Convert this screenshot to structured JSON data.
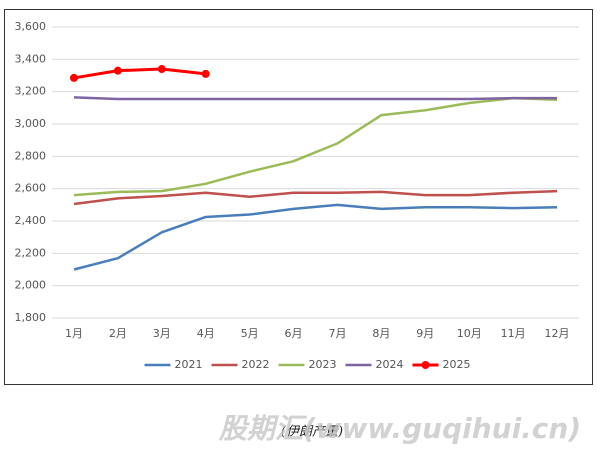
{
  "chart_data": {
    "type": "line",
    "categories": [
      "1月",
      "2月",
      "3月",
      "4月",
      "5月",
      "6月",
      "7月",
      "8月",
      "9月",
      "10月",
      "11月",
      "12月"
    ],
    "series": [
      {
        "name": "2021",
        "color": "#4a7ebb",
        "values": [
          2100,
          2170,
          2330,
          2425,
          2440,
          2475,
          2500,
          2475,
          2485,
          2485,
          2480,
          2485
        ]
      },
      {
        "name": "2022",
        "color": "#c0504d",
        "values": [
          2505,
          2540,
          2555,
          2575,
          2550,
          2575,
          2575,
          2580,
          2560,
          2560,
          2575,
          2585
        ]
      },
      {
        "name": "2023",
        "color": "#9bbb59",
        "values": [
          2560,
          2580,
          2585,
          2630,
          2705,
          2770,
          2880,
          3055,
          3085,
          3130,
          3160,
          3150
        ]
      },
      {
        "name": "2024",
        "color": "#8064a2",
        "values": [
          3165,
          3155,
          3155,
          3155,
          3155,
          3155,
          3155,
          3155,
          3155,
          3155,
          3160,
          3160
        ]
      },
      {
        "name": "2025",
        "color": "#ff0000",
        "markers": true,
        "values": [
          3285,
          3330,
          3340,
          3310,
          null,
          null,
          null,
          null,
          null,
          null,
          null,
          null
        ]
      }
    ],
    "ylim": [
      1800,
      3600
    ],
    "yticks": [
      {
        "value": 1800,
        "label": "1,800"
      },
      {
        "value": 2000,
        "label": "2,000"
      },
      {
        "value": 2200,
        "label": "2,200"
      },
      {
        "value": 2400,
        "label": "2,400"
      },
      {
        "value": 2600,
        "label": "2,600"
      },
      {
        "value": 2800,
        "label": "2,800"
      },
      {
        "value": 3000,
        "label": "3,000"
      },
      {
        "value": 3200,
        "label": "3,200"
      },
      {
        "value": 3400,
        "label": "3,400"
      },
      {
        "value": 3600,
        "label": "3,600"
      }
    ],
    "grid": true,
    "legend": "bottom"
  },
  "caption": "(伊朗产量)",
  "watermark": "股期汇(www.guqihui.cn)"
}
